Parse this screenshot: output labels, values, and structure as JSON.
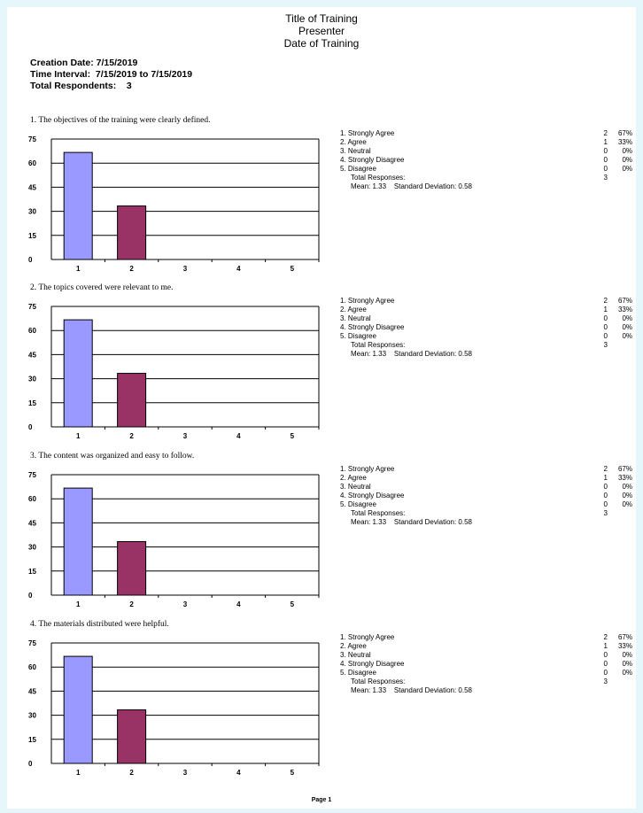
{
  "header": {
    "title": "Title of Training",
    "presenter": "Presenter",
    "date": "Date of Training"
  },
  "meta": {
    "creation_date": "Creation Date: 7/15/2019",
    "time_interval": "Time Interval:  7/15/2019 to 7/15/2019",
    "total_respondents": "Total Respondents:    3"
  },
  "questions": [
    {
      "text": "1. The objectives of the training were clearly defined.",
      "options": [
        {
          "label": "1. Strongly Agree",
          "count": "2",
          "pct": "67%"
        },
        {
          "label": "2. Agree",
          "count": "1",
          "pct": "33%"
        },
        {
          "label": "3. Neutral",
          "count": "0",
          "pct": "0%"
        },
        {
          "label": "4. Strongly Disagree",
          "count": "0",
          "pct": "0%"
        },
        {
          "label": "5. Disagree",
          "count": "0",
          "pct": "0%"
        }
      ],
      "total_label": "Total Responses:",
      "total": "3",
      "summary": "Mean: 1.33    Standard Deviation: 0.58"
    },
    {
      "text": "2. The topics covered were relevant to me.",
      "options": [
        {
          "label": "1. Strongly Agree",
          "count": "2",
          "pct": "67%"
        },
        {
          "label": "2. Agree",
          "count": "1",
          "pct": "33%"
        },
        {
          "label": "3. Neutral",
          "count": "0",
          "pct": "0%"
        },
        {
          "label": "4. Strongly Disagree",
          "count": "0",
          "pct": "0%"
        },
        {
          "label": "5. Disagree",
          "count": "0",
          "pct": "0%"
        }
      ],
      "total_label": "Total Responses:",
      "total": "3",
      "summary": "Mean: 1.33    Standard Deviation: 0.58"
    },
    {
      "text": "3. The content was organized and easy to follow.",
      "options": [
        {
          "label": "1. Strongly Agree",
          "count": "2",
          "pct": "67%"
        },
        {
          "label": "2. Agree",
          "count": "1",
          "pct": "33%"
        },
        {
          "label": "3. Neutral",
          "count": "0",
          "pct": "0%"
        },
        {
          "label": "4. Strongly Disagree",
          "count": "0",
          "pct": "0%"
        },
        {
          "label": "5. Disagree",
          "count": "0",
          "pct": "0%"
        }
      ],
      "total_label": "Total Responses:",
      "total": "3",
      "summary": "Mean: 1.33    Standard Deviation: 0.58"
    },
    {
      "text": "4. The materials distributed were helpful.",
      "options": [
        {
          "label": "1. Strongly Agree",
          "count": "2",
          "pct": "67%"
        },
        {
          "label": "2. Agree",
          "count": "1",
          "pct": "33%"
        },
        {
          "label": "3. Neutral",
          "count": "0",
          "pct": "0%"
        },
        {
          "label": "4. Strongly Disagree",
          "count": "0",
          "pct": "0%"
        },
        {
          "label": "5. Disagree",
          "count": "0",
          "pct": "0%"
        }
      ],
      "total_label": "Total Responses:",
      "total": "3",
      "summary": "Mean: 1.33    Standard Deviation: 0.58"
    }
  ],
  "chart_data": [
    {
      "type": "bar",
      "categories": [
        "1",
        "2",
        "3",
        "4",
        "5"
      ],
      "values": [
        66.67,
        33.33,
        0,
        0,
        0
      ],
      "ylim": [
        0,
        75
      ],
      "yticks": [
        0,
        15,
        30,
        45,
        60,
        75
      ],
      "colors": [
        "#9999ff",
        "#993366"
      ]
    },
    {
      "type": "bar",
      "categories": [
        "1",
        "2",
        "3",
        "4",
        "5"
      ],
      "values": [
        66.67,
        33.33,
        0,
        0,
        0
      ],
      "ylim": [
        0,
        75
      ],
      "yticks": [
        0,
        15,
        30,
        45,
        60,
        75
      ],
      "colors": [
        "#9999ff",
        "#993366"
      ]
    },
    {
      "type": "bar",
      "categories": [
        "1",
        "2",
        "3",
        "4",
        "5"
      ],
      "values": [
        66.67,
        33.33,
        0,
        0,
        0
      ],
      "ylim": [
        0,
        75
      ],
      "yticks": [
        0,
        15,
        30,
        45,
        60,
        75
      ],
      "colors": [
        "#9999ff",
        "#993366"
      ]
    },
    {
      "type": "bar",
      "categories": [
        "1",
        "2",
        "3",
        "4",
        "5"
      ],
      "values": [
        66.67,
        33.33,
        0,
        0,
        0
      ],
      "ylim": [
        0,
        75
      ],
      "yticks": [
        0,
        15,
        30,
        45,
        60,
        75
      ],
      "colors": [
        "#9999ff",
        "#993366"
      ]
    }
  ],
  "footer": {
    "page": "Page 1"
  }
}
